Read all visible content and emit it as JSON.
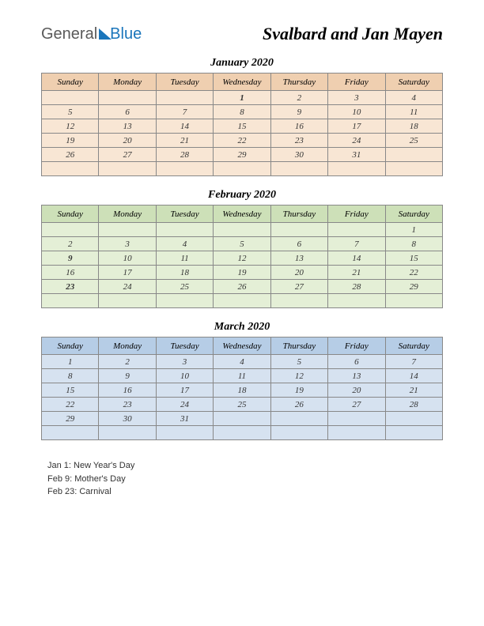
{
  "logo": {
    "part1": "General",
    "part2": "Blue"
  },
  "title": "Svalbard and Jan Mayen",
  "day_headers": [
    "Sunday",
    "Monday",
    "Tuesday",
    "Wednesday",
    "Thursday",
    "Friday",
    "Saturday"
  ],
  "months": [
    {
      "title": "January 2020",
      "header_bg": "#efcfb0",
      "cell_bg": "#f8e6d4",
      "weeks": [
        [
          {
            "d": ""
          },
          {
            "d": ""
          },
          {
            "d": ""
          },
          {
            "d": "1",
            "h": true
          },
          {
            "d": "2"
          },
          {
            "d": "3"
          },
          {
            "d": "4"
          }
        ],
        [
          {
            "d": "5"
          },
          {
            "d": "6"
          },
          {
            "d": "7"
          },
          {
            "d": "8"
          },
          {
            "d": "9"
          },
          {
            "d": "10"
          },
          {
            "d": "11"
          }
        ],
        [
          {
            "d": "12"
          },
          {
            "d": "13"
          },
          {
            "d": "14"
          },
          {
            "d": "15"
          },
          {
            "d": "16"
          },
          {
            "d": "17"
          },
          {
            "d": "18"
          }
        ],
        [
          {
            "d": "19"
          },
          {
            "d": "20"
          },
          {
            "d": "21"
          },
          {
            "d": "22"
          },
          {
            "d": "23"
          },
          {
            "d": "24"
          },
          {
            "d": "25"
          }
        ],
        [
          {
            "d": "26"
          },
          {
            "d": "27"
          },
          {
            "d": "28"
          },
          {
            "d": "29"
          },
          {
            "d": "30"
          },
          {
            "d": "31"
          },
          {
            "d": ""
          }
        ],
        [
          {
            "d": ""
          },
          {
            "d": ""
          },
          {
            "d": ""
          },
          {
            "d": ""
          },
          {
            "d": ""
          },
          {
            "d": ""
          },
          {
            "d": ""
          }
        ]
      ]
    },
    {
      "title": "February 2020",
      "header_bg": "#cde0b8",
      "cell_bg": "#e4efd6",
      "weeks": [
        [
          {
            "d": ""
          },
          {
            "d": ""
          },
          {
            "d": ""
          },
          {
            "d": ""
          },
          {
            "d": ""
          },
          {
            "d": ""
          },
          {
            "d": "1"
          }
        ],
        [
          {
            "d": "2"
          },
          {
            "d": "3"
          },
          {
            "d": "4"
          },
          {
            "d": "5"
          },
          {
            "d": "6"
          },
          {
            "d": "7"
          },
          {
            "d": "8"
          }
        ],
        [
          {
            "d": "9",
            "h": true
          },
          {
            "d": "10"
          },
          {
            "d": "11"
          },
          {
            "d": "12"
          },
          {
            "d": "13"
          },
          {
            "d": "14"
          },
          {
            "d": "15"
          }
        ],
        [
          {
            "d": "16"
          },
          {
            "d": "17"
          },
          {
            "d": "18"
          },
          {
            "d": "19"
          },
          {
            "d": "20"
          },
          {
            "d": "21"
          },
          {
            "d": "22"
          }
        ],
        [
          {
            "d": "23",
            "h": true
          },
          {
            "d": "24"
          },
          {
            "d": "25"
          },
          {
            "d": "26"
          },
          {
            "d": "27"
          },
          {
            "d": "28"
          },
          {
            "d": "29"
          }
        ],
        [
          {
            "d": ""
          },
          {
            "d": ""
          },
          {
            "d": ""
          },
          {
            "d": ""
          },
          {
            "d": ""
          },
          {
            "d": ""
          },
          {
            "d": ""
          }
        ]
      ]
    },
    {
      "title": "March 2020",
      "header_bg": "#b6cde6",
      "cell_bg": "#d6e2f0",
      "weeks": [
        [
          {
            "d": "1"
          },
          {
            "d": "2"
          },
          {
            "d": "3"
          },
          {
            "d": "4"
          },
          {
            "d": "5"
          },
          {
            "d": "6"
          },
          {
            "d": "7"
          }
        ],
        [
          {
            "d": "8"
          },
          {
            "d": "9"
          },
          {
            "d": "10"
          },
          {
            "d": "11"
          },
          {
            "d": "12"
          },
          {
            "d": "13"
          },
          {
            "d": "14"
          }
        ],
        [
          {
            "d": "15"
          },
          {
            "d": "16"
          },
          {
            "d": "17"
          },
          {
            "d": "18"
          },
          {
            "d": "19"
          },
          {
            "d": "20"
          },
          {
            "d": "21"
          }
        ],
        [
          {
            "d": "22"
          },
          {
            "d": "23"
          },
          {
            "d": "24"
          },
          {
            "d": "25"
          },
          {
            "d": "26"
          },
          {
            "d": "27"
          },
          {
            "d": "28"
          }
        ],
        [
          {
            "d": "29"
          },
          {
            "d": "30"
          },
          {
            "d": "31"
          },
          {
            "d": ""
          },
          {
            "d": ""
          },
          {
            "d": ""
          },
          {
            "d": ""
          }
        ],
        [
          {
            "d": ""
          },
          {
            "d": ""
          },
          {
            "d": ""
          },
          {
            "d": ""
          },
          {
            "d": ""
          },
          {
            "d": ""
          },
          {
            "d": ""
          }
        ]
      ]
    }
  ],
  "notes": [
    "Jan 1: New Year's Day",
    "Feb 9: Mother's Day",
    "Feb 23: Carnival"
  ]
}
